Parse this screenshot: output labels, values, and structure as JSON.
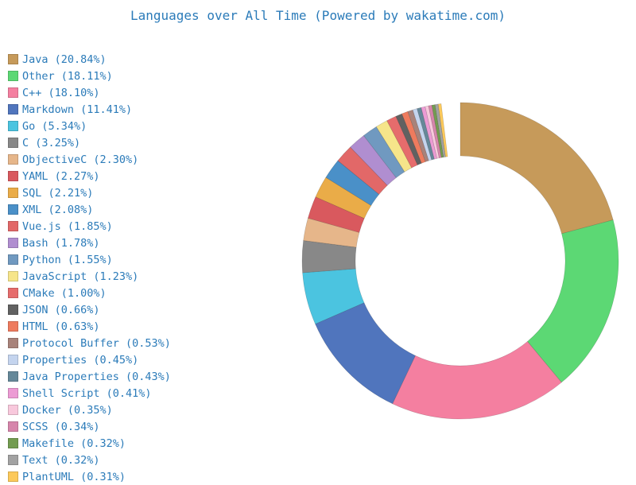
{
  "chart_data": {
    "type": "pie",
    "donut": true,
    "title": "Languages over All Time (Powered by wakatime.com)",
    "legend_position": "left",
    "slices": [
      {
        "label": "Java",
        "value": 20.84,
        "color": "#c69a5a"
      },
      {
        "label": "Other",
        "value": 18.11,
        "color": "#5cd874"
      },
      {
        "label": "C++",
        "value": 18.1,
        "color": "#f47fa0"
      },
      {
        "label": "Markdown",
        "value": 11.41,
        "color": "#5075bd"
      },
      {
        "label": "Go",
        "value": 5.34,
        "color": "#4bc4e0"
      },
      {
        "label": "C",
        "value": 3.25,
        "color": "#888888"
      },
      {
        "label": "ObjectiveC",
        "value": 2.3,
        "color": "#e6b68a"
      },
      {
        "label": "YAML",
        "value": 2.27,
        "color": "#d9595e"
      },
      {
        "label": "SQL",
        "value": 2.21,
        "color": "#eaac48"
      },
      {
        "label": "XML",
        "value": 2.08,
        "color": "#4a90c8"
      },
      {
        "label": "Vue.js",
        "value": 1.85,
        "color": "#e26868"
      },
      {
        "label": "Bash",
        "value": 1.78,
        "color": "#b08ed0"
      },
      {
        "label": "Python",
        "value": 1.55,
        "color": "#7099c0"
      },
      {
        "label": "JavaScript",
        "value": 1.23,
        "color": "#f6e58a"
      },
      {
        "label": "CMake",
        "value": 1.0,
        "color": "#e66c6c"
      },
      {
        "label": "JSON",
        "value": 0.66,
        "color": "#616161"
      },
      {
        "label": "HTML",
        "value": 0.63,
        "color": "#ee7b5e"
      },
      {
        "label": "Protocol Buffer",
        "value": 0.53,
        "color": "#a8827a"
      },
      {
        "label": "Properties",
        "value": 0.45,
        "color": "#c4d4ee"
      },
      {
        "label": "Java Properties",
        "value": 0.43,
        "color": "#658899"
      },
      {
        "label": "Shell Script",
        "value": 0.41,
        "color": "#ec9bd4"
      },
      {
        "label": "Docker",
        "value": 0.35,
        "color": "#f8c8dc"
      },
      {
        "label": "SCSS",
        "value": 0.34,
        "color": "#d685ab"
      },
      {
        "label": "Makefile",
        "value": 0.32,
        "color": "#739c50"
      },
      {
        "label": "Text",
        "value": 0.32,
        "color": "#a2a2a2"
      },
      {
        "label": "PlantUML",
        "value": 0.31,
        "color": "#fcc95a"
      }
    ]
  }
}
